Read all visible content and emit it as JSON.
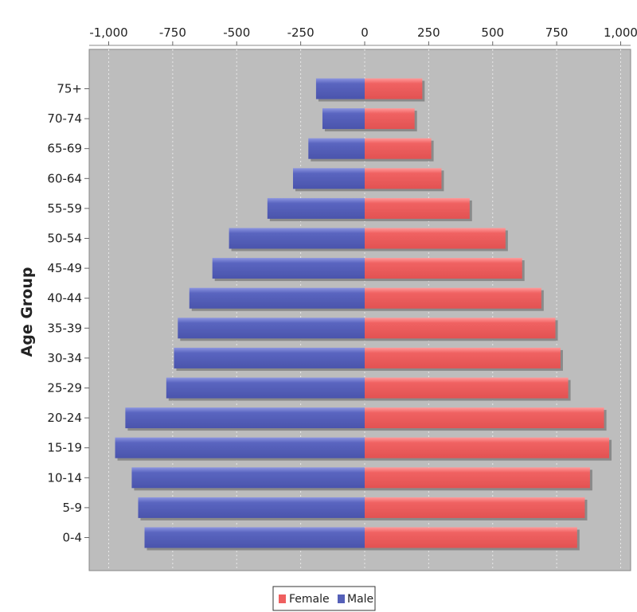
{
  "chart_data": {
    "type": "bar",
    "orientation": "horizontal",
    "ylabel": "Age Group",
    "xlim": [
      -1000,
      1000
    ],
    "x_ticks": [
      -1000,
      -750,
      -500,
      -250,
      0,
      250,
      500,
      750,
      1000
    ],
    "x_tick_labels": [
      "-1,000",
      "-750",
      "-500",
      "-250",
      "0",
      "250",
      "500",
      "750",
      "1,000"
    ],
    "categories": [
      "75+",
      "70-74",
      "65-69",
      "60-64",
      "55-59",
      "50-54",
      "45-49",
      "40-44",
      "35-39",
      "30-34",
      "25-29",
      "20-24",
      "15-19",
      "10-14",
      "5-9",
      "0-4"
    ],
    "series": [
      {
        "name": "Male",
        "color": "#5560b8",
        "values": [
          -190,
          -165,
          -220,
          -280,
          -380,
          -530,
          -595,
          -685,
          -730,
          -745,
          -775,
          -935,
          -975,
          -910,
          -885,
          -860
        ]
      },
      {
        "name": "Female",
        "color": "#ef5f5f",
        "values": [
          225,
          195,
          260,
          300,
          410,
          550,
          615,
          690,
          745,
          765,
          795,
          935,
          955,
          880,
          860,
          830
        ]
      }
    ],
    "legend": {
      "position": "bottom-center",
      "items": [
        "Female",
        "Male"
      ]
    },
    "grid": true,
    "plot_background": "#bdbdbd"
  }
}
